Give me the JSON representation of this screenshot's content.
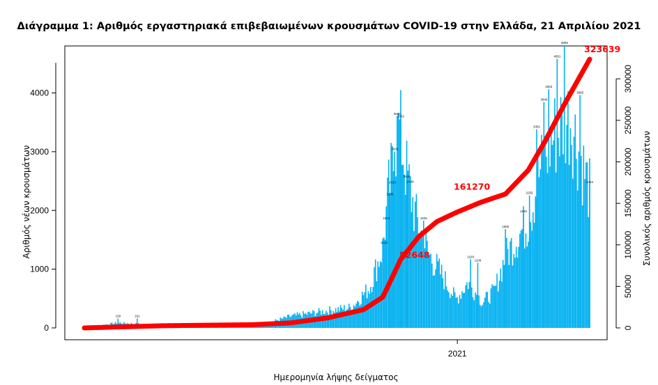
{
  "chart_data": {
    "type": "bar",
    "title": "Διάγραμμα 1: Αριθμός εργαστηριακά επιβεβαιωμένων κρουσμάτων COVID-19 στην Ελλάδα, 21 Απριλίου 2021",
    "xlabel": "Ημερομηνία λήψης δείγματος",
    "ylabel": "Αριθμός νέων κρουσμάτων",
    "y2label": "Συνολικός αριθμός κρουσμάτων",
    "x_tick_labels": [
      {
        "label": "2021",
        "x": "2021-01-01"
      }
    ],
    "x_range": [
      "2020-02-26",
      "2021-04-21"
    ],
    "ylim": [
      0,
      4800
    ],
    "y_ticks": [
      0,
      1000,
      2000,
      3000,
      4000
    ],
    "y2lim": [
      0,
      323639
    ],
    "y2_ticks": [
      0,
      50000,
      100000,
      150000,
      200000,
      250000,
      300000
    ],
    "bar_color": "#00b0f0",
    "line_color": "#ff0000",
    "anchors_daily": [
      {
        "x": "2020-02-26",
        "y": 3
      },
      {
        "x": "2020-03-25",
        "y": 90
      },
      {
        "x": "2020-04-20",
        "y": 60
      },
      {
        "x": "2020-05-20",
        "y": 20
      },
      {
        "x": "2020-06-20",
        "y": 25
      },
      {
        "x": "2020-07-20",
        "y": 40
      },
      {
        "x": "2020-08-15",
        "y": 200
      },
      {
        "x": "2020-09-15",
        "y": 300
      },
      {
        "x": "2020-10-05",
        "y": 360
      },
      {
        "x": "2020-10-20",
        "y": 700
      },
      {
        "x": "2020-10-31",
        "y": 1400
      },
      {
        "x": "2020-11-05",
        "y": 2400
      },
      {
        "x": "2020-11-10",
        "y": 3000
      },
      {
        "x": "2020-11-14",
        "y": 3500
      },
      {
        "x": "2020-11-20",
        "y": 2700
      },
      {
        "x": "2020-11-28",
        "y": 1900
      },
      {
        "x": "2020-12-08",
        "y": 1300
      },
      {
        "x": "2020-12-20",
        "y": 900
      },
      {
        "x": "2020-12-31",
        "y": 500
      },
      {
        "x": "2021-01-10",
        "y": 800
      },
      {
        "x": "2021-01-22",
        "y": 450
      },
      {
        "x": "2021-02-01",
        "y": 650
      },
      {
        "x": "2021-02-10",
        "y": 1250
      },
      {
        "x": "2021-02-20",
        "y": 1600
      },
      {
        "x": "2021-03-01",
        "y": 1850
      },
      {
        "x": "2021-03-10",
        "y": 2700
      },
      {
        "x": "2021-03-20",
        "y": 3300
      },
      {
        "x": "2021-03-30",
        "y": 3600
      },
      {
        "x": "2021-04-05",
        "y": 3700
      },
      {
        "x": "2021-04-12",
        "y": 3100
      },
      {
        "x": "2021-04-21",
        "y": 2400
      }
    ],
    "anchors_cumulative": [
      {
        "x": "2020-02-26",
        "y": 0
      },
      {
        "x": "2020-04-30",
        "y": 2600
      },
      {
        "x": "2020-07-15",
        "y": 3900
      },
      {
        "x": "2020-08-15",
        "y": 6000
      },
      {
        "x": "2020-09-15",
        "y": 12000
      },
      {
        "x": "2020-10-15",
        "y": 22000
      },
      {
        "x": "2020-10-31",
        "y": 37000
      },
      {
        "x": "2020-11-15",
        "y": 82648
      },
      {
        "x": "2020-11-30",
        "y": 110000
      },
      {
        "x": "2020-12-15",
        "y": 128000
      },
      {
        "x": "2020-12-31",
        "y": 139000
      },
      {
        "x": "2021-01-20",
        "y": 151000
      },
      {
        "x": "2021-02-10",
        "y": 161270
      },
      {
        "x": "2021-03-01",
        "y": 190000
      },
      {
        "x": "2021-03-15",
        "y": 225000
      },
      {
        "x": "2021-04-01",
        "y": 272000
      },
      {
        "x": "2021-04-21",
        "y": 323639
      }
    ],
    "labeled_bars": [
      {
        "x": "2020-03-25",
        "y": 159,
        "label": "159"
      },
      {
        "x": "2020-04-10",
        "y": 161,
        "label": "161"
      },
      {
        "x": "2020-11-10",
        "y": 3002,
        "label": "3002"
      },
      {
        "x": "2020-11-12",
        "y": 3605,
        "label": "3605"
      },
      {
        "x": "2020-11-15",
        "y": 3562,
        "label": "3562"
      },
      {
        "x": "2020-11-08",
        "y": 2433,
        "label": "2433"
      },
      {
        "x": "2020-11-06",
        "y": 2235,
        "label": "2235"
      },
      {
        "x": "2020-11-20",
        "y": 2535,
        "label": "2535"
      },
      {
        "x": "2020-11-23",
        "y": 2446,
        "label": "2446"
      },
      {
        "x": "2020-12-04",
        "y": 1825,
        "label": "1825"
      },
      {
        "x": "2020-11-03",
        "y": 1824,
        "label": "1824"
      },
      {
        "x": "2020-11-01",
        "y": 1413,
        "label": "1413"
      },
      {
        "x": "2021-01-12",
        "y": 1168,
        "label": "1168"
      },
      {
        "x": "2021-01-18",
        "y": 1109,
        "label": "1109"
      },
      {
        "x": "2021-02-10",
        "y": 1685,
        "label": "1685"
      },
      {
        "x": "2021-02-25",
        "y": 1946,
        "label": "1946"
      },
      {
        "x": "2021-03-02",
        "y": 2255,
        "label": "2255"
      },
      {
        "x": "2021-03-08",
        "y": 3381,
        "label": "3381"
      },
      {
        "x": "2021-03-14",
        "y": 3846,
        "label": "3846"
      },
      {
        "x": "2021-03-18",
        "y": 4063,
        "label": "4063"
      },
      {
        "x": "2021-03-25",
        "y": 4581,
        "label": "4581"
      },
      {
        "x": "2021-03-31",
        "y": 4809,
        "label": "4809"
      },
      {
        "x": "2021-04-13",
        "y": 3965,
        "label": "3965"
      },
      {
        "x": "2021-04-21",
        "y": 2443,
        "label": "2443"
      }
    ],
    "annotations": [
      {
        "x": "2020-11-15",
        "y": 82648,
        "label": "82648"
      },
      {
        "x": "2021-02-10",
        "y": 161270,
        "label": "161270"
      },
      {
        "x": "2021-04-21",
        "y": 323639,
        "label": "323639"
      }
    ]
  }
}
